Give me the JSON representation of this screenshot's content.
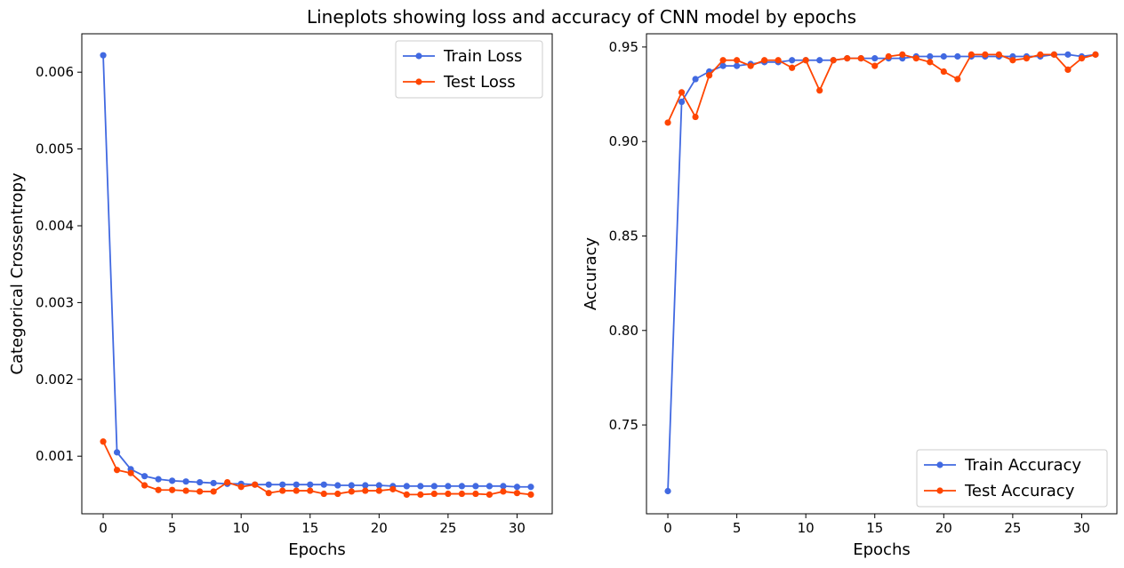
{
  "suptitle": "Lineplots showing loss and accuracy of CNN model by epochs",
  "colors": {
    "train": "#4169e1",
    "test": "#ff4500"
  },
  "chart_data": [
    {
      "type": "line",
      "xlabel": "Epochs",
      "ylabel": "Categorical Crossentropy",
      "xlim": [
        -1.55,
        32.55
      ],
      "ylim": [
        0.00025,
        0.0065
      ],
      "xticks": [
        0,
        5,
        10,
        15,
        20,
        25,
        30
      ],
      "yticks": [
        0.001,
        0.002,
        0.003,
        0.004,
        0.005,
        0.006
      ],
      "ytick_labels": [
        "0.001",
        "0.002",
        "0.003",
        "0.004",
        "0.005",
        "0.006"
      ],
      "legend": "upper right",
      "x": [
        0,
        1,
        2,
        3,
        4,
        5,
        6,
        7,
        8,
        9,
        10,
        11,
        12,
        13,
        14,
        15,
        16,
        17,
        18,
        19,
        20,
        21,
        22,
        23,
        24,
        25,
        26,
        27,
        28,
        29,
        30,
        31
      ],
      "series": [
        {
          "name": "Train Loss",
          "color": "#4169e1",
          "values": [
            0.00622,
            0.00105,
            0.00083,
            0.00074,
            0.0007,
            0.00068,
            0.00067,
            0.00066,
            0.00065,
            0.00064,
            0.00064,
            0.00063,
            0.00063,
            0.00063,
            0.00063,
            0.00063,
            0.00063,
            0.00062,
            0.00062,
            0.00062,
            0.00062,
            0.00061,
            0.00061,
            0.00061,
            0.00061,
            0.00061,
            0.00061,
            0.00061,
            0.00061,
            0.00061,
            0.0006,
            0.0006
          ]
        },
        {
          "name": "Test Loss",
          "color": "#ff4500",
          "values": [
            0.00119,
            0.00082,
            0.00078,
            0.00062,
            0.00056,
            0.00056,
            0.00055,
            0.00054,
            0.00054,
            0.00066,
            0.0006,
            0.00063,
            0.00052,
            0.00055,
            0.00055,
            0.00055,
            0.00051,
            0.00051,
            0.00054,
            0.00055,
            0.00055,
            0.00057,
            0.0005,
            0.0005,
            0.00051,
            0.00051,
            0.00051,
            0.00051,
            0.0005,
            0.00054,
            0.00052,
            0.0005
          ]
        }
      ]
    },
    {
      "type": "line",
      "xlabel": "Epochs",
      "ylabel": "Accuracy",
      "xlim": [
        -1.55,
        32.55
      ],
      "ylim": [
        0.703,
        0.957
      ],
      "xticks": [
        0,
        5,
        10,
        15,
        20,
        25,
        30
      ],
      "yticks": [
        0.75,
        0.8,
        0.85,
        0.9,
        0.95
      ],
      "ytick_labels": [
        "0.75",
        "0.80",
        "0.85",
        "0.90",
        "0.95"
      ],
      "legend": "lower right",
      "x": [
        0,
        1,
        2,
        3,
        4,
        5,
        6,
        7,
        8,
        9,
        10,
        11,
        12,
        13,
        14,
        15,
        16,
        17,
        18,
        19,
        20,
        21,
        22,
        23,
        24,
        25,
        26,
        27,
        28,
        29,
        30,
        31
      ],
      "series": [
        {
          "name": "Train Accuracy",
          "color": "#4169e1",
          "values": [
            0.715,
            0.921,
            0.933,
            0.937,
            0.94,
            0.94,
            0.941,
            0.942,
            0.942,
            0.943,
            0.943,
            0.943,
            0.943,
            0.944,
            0.944,
            0.944,
            0.944,
            0.944,
            0.945,
            0.945,
            0.945,
            0.945,
            0.945,
            0.945,
            0.945,
            0.945,
            0.945,
            0.945,
            0.946,
            0.946,
            0.945,
            0.946
          ]
        },
        {
          "name": "Test Accuracy",
          "color": "#ff4500",
          "values": [
            0.91,
            0.926,
            0.913,
            0.935,
            0.943,
            0.943,
            0.94,
            0.943,
            0.943,
            0.939,
            0.943,
            0.927,
            0.943,
            0.944,
            0.944,
            0.94,
            0.945,
            0.946,
            0.944,
            0.942,
            0.937,
            0.933,
            0.946,
            0.946,
            0.946,
            0.943,
            0.944,
            0.946,
            0.946,
            0.938,
            0.944,
            0.946
          ]
        }
      ]
    }
  ]
}
